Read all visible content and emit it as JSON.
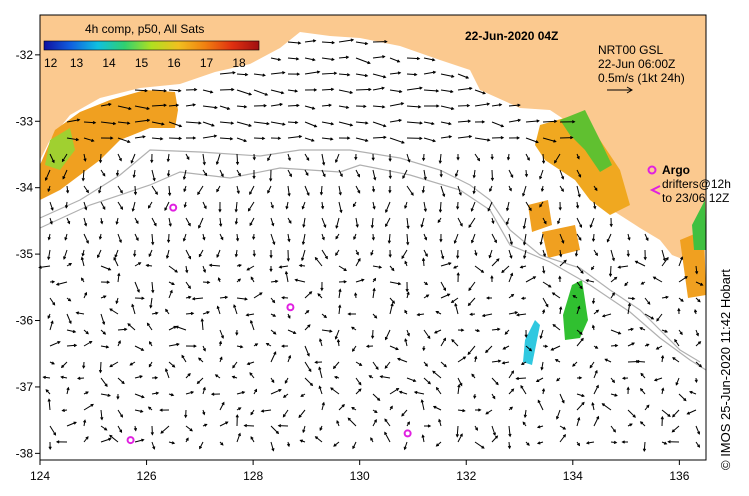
{
  "title": "22-Jun-2020 04Z",
  "colorbar": {
    "title": "4h comp, p50, All Sats",
    "ticks": [
      "12",
      "13",
      "14",
      "15",
      "16",
      "17",
      "18"
    ],
    "colors": [
      "#1010a0",
      "#1060e0",
      "#10c0e0",
      "#30d070",
      "#b0e020",
      "#f0c020",
      "#f08010",
      "#e03010",
      "#a01010"
    ]
  },
  "info": {
    "product": "NRT00 GSL",
    "date": "22-Jun 06:00Z",
    "scale": "0.5m/s (1kt 24h)"
  },
  "legend": {
    "argo": "Argo",
    "drifters": "drifters@12h",
    "to_date": "to 23/06 12Z"
  },
  "credit": "© IMOS 25-Jun-2020 11:42 Hobart",
  "axes": {
    "x_ticks": [
      "124",
      "126",
      "128",
      "130",
      "132",
      "134",
      "136"
    ],
    "y_ticks": [
      "-32",
      "-33",
      "-34",
      "-35",
      "-36",
      "-37",
      "-38"
    ],
    "lon_range": [
      124,
      136.5
    ],
    "lat_range": [
      -38.1,
      -31.4
    ]
  },
  "argo_floats": [
    {
      "name": "argo-float",
      "lon": 126.5,
      "lat": -34.3
    },
    {
      "name": "argo-float",
      "lon": 128.7,
      "lat": -35.8
    },
    {
      "name": "argo-float",
      "lon": 125.7,
      "lat": -37.8
    },
    {
      "name": "argo-float",
      "lon": 130.9,
      "lat": -37.7
    }
  ],
  "colors": {
    "land": "#fbc98f",
    "sea": "#ffffff",
    "argo": "#e020e0",
    "shelf": "#b0b0b0"
  }
}
